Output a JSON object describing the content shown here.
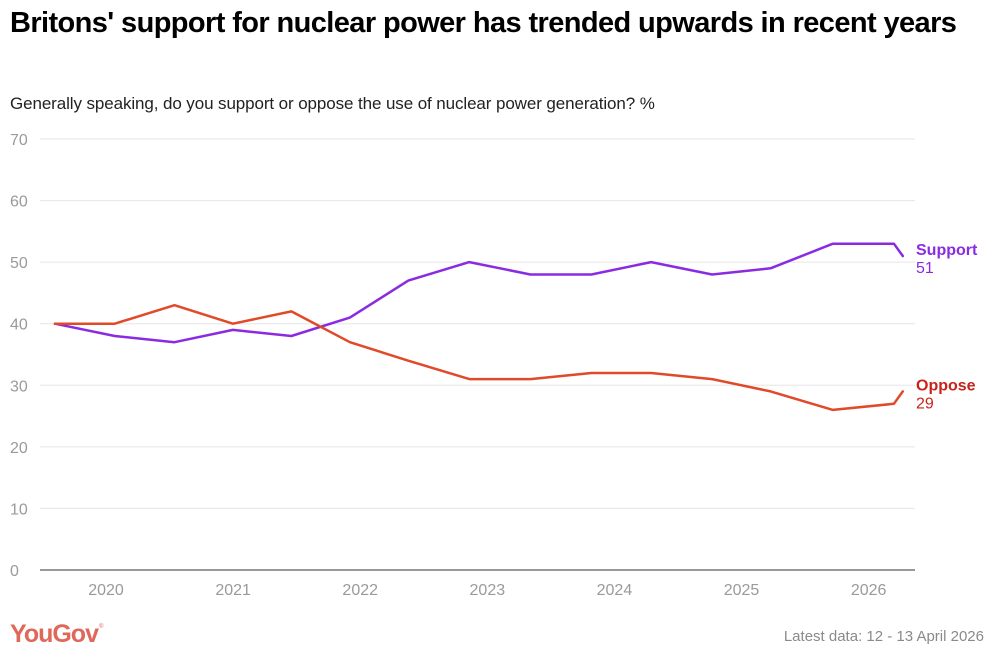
{
  "title": "Britons' support for nuclear power has trended upwards in recent years",
  "subtitle": "Generally speaking, do you support or oppose the use of nuclear power generation? %",
  "brand": {
    "logo_text": "YouGov",
    "logo_mark": "®",
    "color": "#e0685a"
  },
  "footer": {
    "latest_data": "Latest data: 12 - 13 April 2026"
  },
  "chart_data": {
    "type": "line",
    "title": "Britons' support for nuclear power has trended upwards in recent years",
    "subtitle": "Generally speaking, do you support or oppose the use of nuclear power generation? %",
    "xlabel": "",
    "ylabel": "%",
    "ylim": [
      0,
      70
    ],
    "yticks": [
      0,
      10,
      20,
      30,
      40,
      50,
      60,
      70
    ],
    "xlim": [
      2019.55,
      2026.45
    ],
    "xticks": [
      2020,
      2021,
      2022,
      2023,
      2024,
      2025,
      2026
    ],
    "xtick_labels": [
      "2020",
      "2021",
      "2022",
      "2023",
      "2024",
      "2025",
      "2026"
    ],
    "grid": true,
    "legend": "right-end-labels",
    "x": [
      2019.63,
      2020.1,
      2020.57,
      2021.03,
      2021.49,
      2021.95,
      2022.41,
      2022.89,
      2023.37,
      2023.85,
      2024.32,
      2024.8,
      2025.26,
      2025.75,
      2026.23,
      2026.3
    ],
    "series": [
      {
        "name": "Support",
        "color": "#8a2be2",
        "label_value": "51",
        "values": [
          40,
          38,
          37,
          39,
          38,
          41,
          47,
          50,
          48,
          48,
          50,
          48,
          49,
          53,
          53,
          51
        ]
      },
      {
        "name": "Oppose",
        "color": "#e04a2a",
        "label_color": "#c8231b",
        "label_value": "29",
        "values": [
          40,
          40,
          43,
          40,
          42,
          37,
          34,
          31,
          31,
          32,
          32,
          31,
          29,
          26,
          27,
          29
        ]
      }
    ]
  }
}
